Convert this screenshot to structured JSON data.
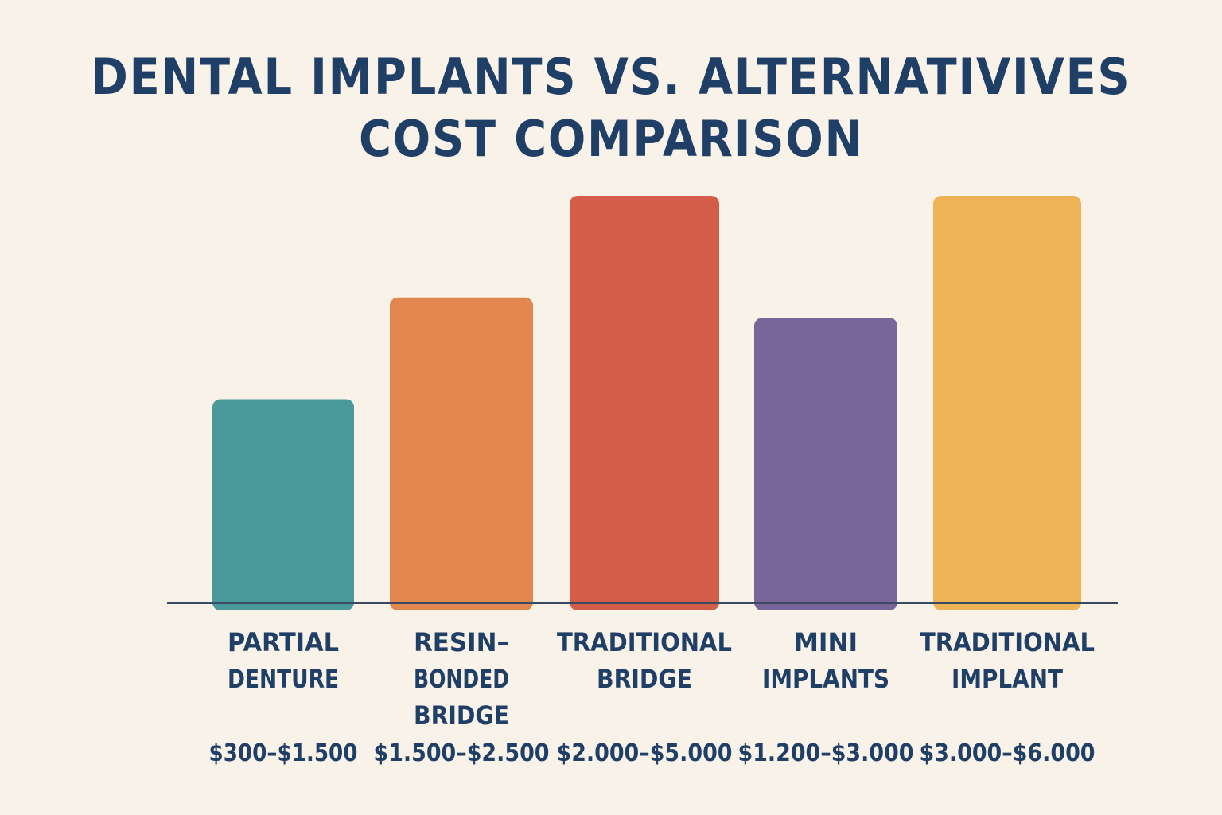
{
  "title": {
    "line1": "DENTAL IMPLANTS VS. ALTERNATIVIVES",
    "line2": "COST COMPARISON"
  },
  "chart_data": {
    "type": "bar",
    "title": "DENTAL IMPLANTS VS. ALTERNATIVIVES COST COMPARISON",
    "xlabel": "",
    "ylabel": "",
    "grid": false,
    "legend": "none",
    "categories": [
      [
        "PARTIAL",
        "DENTURE"
      ],
      [
        "RESIN–",
        "BONDED",
        "BRIDGE"
      ],
      [
        "TRADITIONAL",
        "BRIDGE"
      ],
      [
        "MINI",
        "IMPLANTS"
      ],
      [
        "TRADITIONAL",
        "IMPLANT"
      ]
    ],
    "value_labels": [
      "$300–$1.500",
      "$1.500–$2.500",
      "$2.000–$5.000",
      "$1.200–$3.000",
      "$3.000–$6.000"
    ],
    "values": [
      1000,
      1500,
      2000,
      1400,
      2000
    ],
    "ylim": [
      0,
      2000
    ],
    "colors": [
      "#4a9a9b",
      "#e2874f",
      "#d45d4a",
      "#786699",
      "#eeb257"
    ],
    "axis_color": "#3b4a63"
  }
}
